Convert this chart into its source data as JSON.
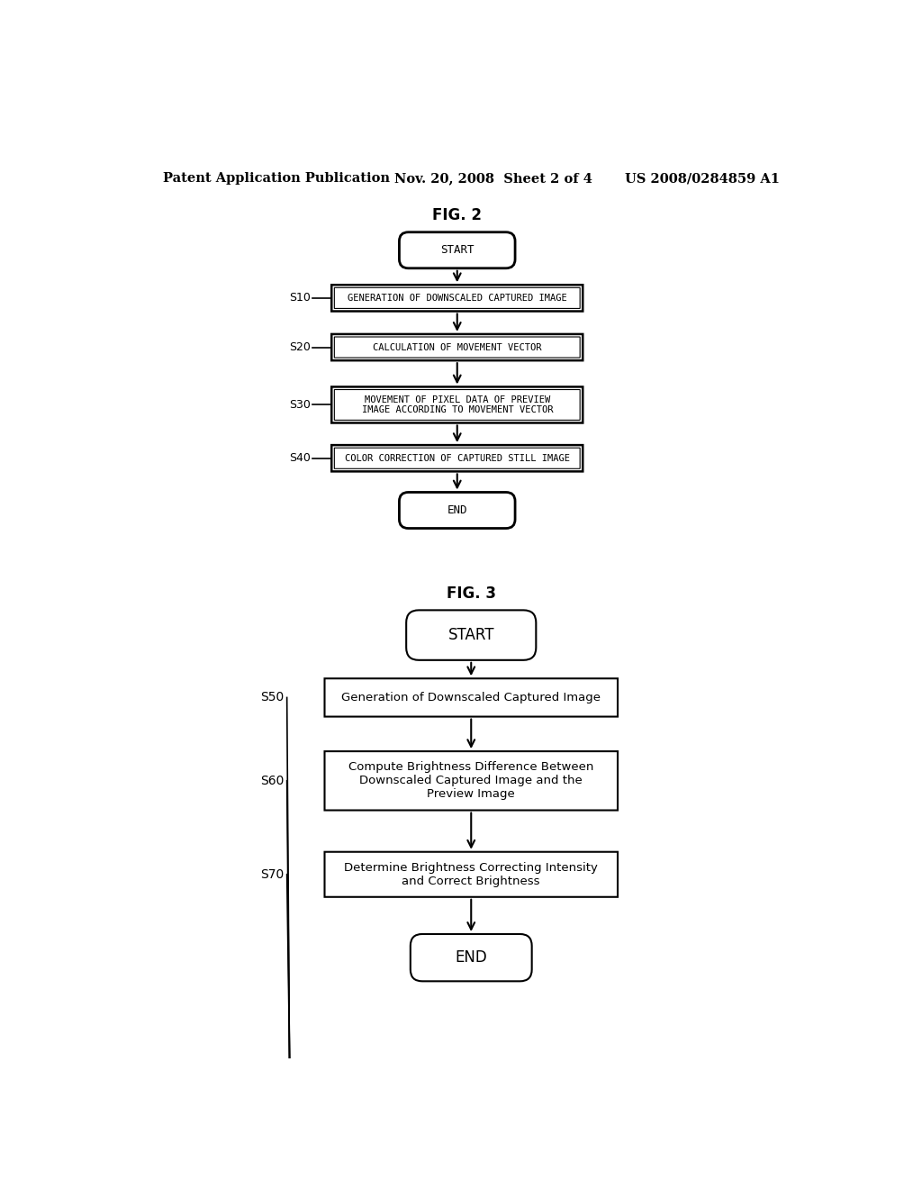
{
  "bg_color": "#ffffff",
  "header_left": "Patent Application Publication",
  "header_mid": "Nov. 20, 2008  Sheet 2 of 4",
  "header_right": "US 2008/0284859 A1",
  "fig2_title": "FIG. 2",
  "fig2_start": "START",
  "fig2_end": "END",
  "fig2_steps": [
    {
      "label": "S10",
      "text": "GENERATION OF DOWNSCALED CAPTURED IMAGE",
      "lines": 1
    },
    {
      "label": "S20",
      "text": "CALCULATION OF MOVEMENT VECTOR",
      "lines": 1
    },
    {
      "label": "S30",
      "text": "MOVEMENT OF PIXEL DATA OF PREVIEW\nIMAGE ACCORDING TO MOVEMENT VECTOR",
      "lines": 2
    },
    {
      "label": "S40",
      "text": "COLOR CORRECTION OF CAPTURED STILL IMAGE",
      "lines": 1
    }
  ],
  "fig3_title": "FIG. 3",
  "fig3_start": "START",
  "fig3_end": "END",
  "fig3_steps": [
    {
      "label": "S50",
      "text": "Generation of Downscaled Captured Image",
      "lines": 1
    },
    {
      "label": "S60",
      "text": "Compute Brightness Difference Between\nDownscaled Captured Image and the\nPreview Image",
      "lines": 3
    },
    {
      "label": "S70",
      "text": "Determine Brightness Correcting Intensity\nand Correct Brightness",
      "lines": 2
    }
  ]
}
